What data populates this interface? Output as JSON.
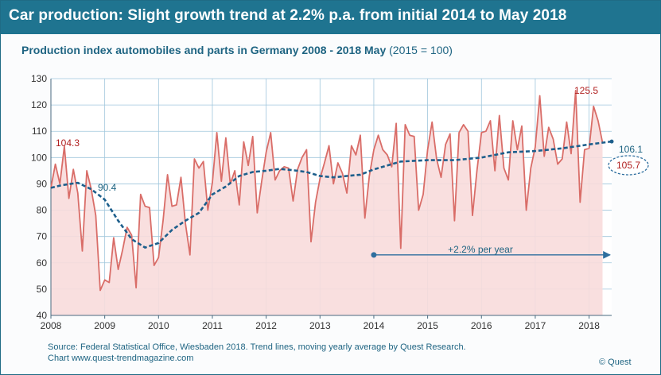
{
  "header": {
    "title": "Car production: Slight growth trend at 2.2% p.a. from initial 2014 to May 2018"
  },
  "subtitle": {
    "main": "Production index automobiles and parts in Germany 2008 - 2018 May",
    "unit": "(2015 = 100)"
  },
  "footer": {
    "source_line1": "Source: Federal Statistical Office, Wiesbaden 2018. Trend lines, moving yearly average by Quest Research.",
    "source_line2": "Chart www.quest-trendmagazine.com",
    "copyright": "© Quest"
  },
  "colors": {
    "title_bar": "#1f7490",
    "text_blue": "#1e6482",
    "series_line": "#d96d68",
    "series_fill": "#f8dcdc",
    "trend_line": "#1d5f8c",
    "annotation_red": "#b01e1e",
    "grid": "#9fc6dc"
  },
  "chart_data": {
    "type": "area",
    "xlim": [
      2008,
      2018.42
    ],
    "ylim": [
      40,
      130
    ],
    "x_ticks": [
      2008,
      2009,
      2010,
      2011,
      2012,
      2013,
      2014,
      2015,
      2016,
      2017,
      2018
    ],
    "y_ticks": [
      40,
      50,
      60,
      70,
      80,
      90,
      100,
      110,
      120,
      130
    ],
    "grid": true,
    "series": [
      {
        "name": "Production index",
        "style": "filled-line",
        "start": "2008-01",
        "frequency": "monthly",
        "values": [
          88.5,
          97.5,
          90.0,
          104.3,
          84.5,
          95.5,
          86.5,
          64.5,
          95.0,
          88.0,
          78.0,
          49.5,
          53.5,
          52.5,
          69.5,
          57.5,
          65.0,
          73.5,
          70.5,
          50.5,
          86.0,
          81.5,
          81.0,
          59.0,
          62.0,
          76.0,
          93.5,
          81.5,
          82.0,
          92.5,
          75.0,
          63.0,
          99.5,
          96.0,
          98.5,
          80.0,
          90.5,
          109.5,
          91.0,
          107.5,
          90.0,
          95.0,
          82.0,
          106.0,
          97.0,
          108.0,
          79.0,
          91.0,
          102.0,
          109.5,
          91.5,
          95.0,
          96.5,
          96.0,
          83.5,
          95.5,
          100.0,
          103.0,
          68.0,
          83.0,
          92.0,
          98.0,
          104.5,
          90.0,
          98.0,
          94.0,
          86.5,
          104.5,
          101.0,
          108.5,
          77.0,
          93.0,
          103.0,
          108.5,
          103.0,
          101.0,
          96.5,
          113.0,
          65.5,
          112.5,
          108.5,
          108.0,
          80.0,
          86.0,
          103.0,
          113.5,
          99.5,
          92.5,
          105.0,
          109.0,
          76.0,
          109.5,
          112.5,
          110.0,
          78.0,
          95.0,
          109.5,
          110.0,
          114.0,
          95.0,
          116.0,
          96.0,
          91.5,
          114.0,
          103.0,
          112.0,
          80.0,
          96.0,
          104.0,
          123.5,
          100.5,
          111.5,
          107.0,
          97.5,
          99.5,
          113.5,
          101.5,
          125.5,
          83.0,
          103.0,
          103.5,
          119.5,
          114.0,
          105.7
        ]
      },
      {
        "name": "Moving yearly average",
        "style": "dashed",
        "points": [
          [
            2008.0,
            88.5
          ],
          [
            2008.2,
            89.5
          ],
          [
            2008.5,
            90.4
          ],
          [
            2008.75,
            88.0
          ],
          [
            2009.0,
            84.0
          ],
          [
            2009.25,
            76.0
          ],
          [
            2009.5,
            69.0
          ],
          [
            2009.75,
            65.8
          ],
          [
            2010.0,
            67.5
          ],
          [
            2010.25,
            72.5
          ],
          [
            2010.5,
            76.0
          ],
          [
            2010.75,
            79.0
          ],
          [
            2011.0,
            86.0
          ],
          [
            2011.25,
            89.0
          ],
          [
            2011.5,
            93.0
          ],
          [
            2011.75,
            94.5
          ],
          [
            2012.0,
            95.0
          ],
          [
            2012.25,
            95.7
          ],
          [
            2012.5,
            95.2
          ],
          [
            2012.75,
            94.5
          ],
          [
            2013.0,
            93.0
          ],
          [
            2013.25,
            92.5
          ],
          [
            2013.5,
            93.0
          ],
          [
            2013.75,
            93.5
          ],
          [
            2014.0,
            95.5
          ],
          [
            2014.5,
            98.5
          ],
          [
            2015.0,
            99.0
          ],
          [
            2015.5,
            99.0
          ],
          [
            2016.0,
            100.0
          ],
          [
            2016.5,
            102.0
          ],
          [
            2017.0,
            102.5
          ],
          [
            2017.5,
            103.5
          ],
          [
            2018.0,
            105.0
          ],
          [
            2018.42,
            106.1
          ]
        ]
      }
    ],
    "annotations": {
      "peak_2008": "104.3",
      "trend_2008": "90.4",
      "peak_2017": "125.5",
      "trend_end": "106.1",
      "last_value": "105.7",
      "growth": "+2.2% per year"
    },
    "growth_arrow": {
      "from": 2014,
      "to": 2018.42,
      "y": 63
    }
  }
}
